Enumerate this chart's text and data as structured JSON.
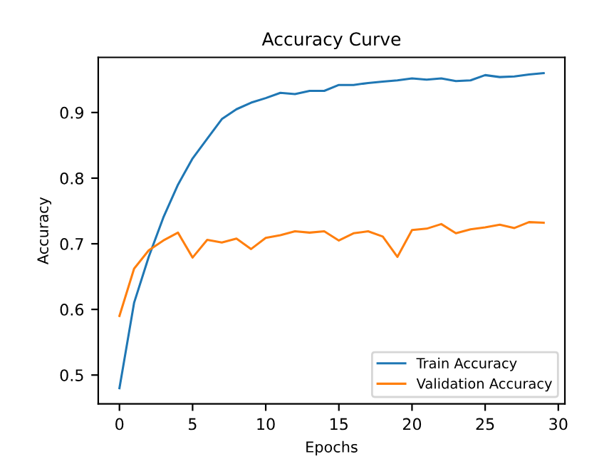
{
  "chart_data": {
    "type": "line",
    "title": "Accuracy Curve",
    "xlabel": "Epochs",
    "ylabel": "Accuracy",
    "x": [
      0,
      1,
      2,
      3,
      4,
      5,
      6,
      7,
      8,
      9,
      10,
      11,
      12,
      13,
      14,
      15,
      16,
      17,
      18,
      19,
      20,
      21,
      22,
      23,
      24,
      25,
      26,
      27,
      28,
      29
    ],
    "series": [
      {
        "name": "Train Accuracy",
        "color": "#1f77b4",
        "values": [
          0.48,
          0.61,
          0.68,
          0.74,
          0.79,
          0.83,
          0.86,
          0.89,
          0.905,
          0.915,
          0.922,
          0.93,
          0.928,
          0.933,
          0.933,
          0.942,
          0.942,
          0.945,
          0.947,
          0.949,
          0.952,
          0.95,
          0.952,
          0.948,
          0.949,
          0.957,
          0.954,
          0.955,
          0.958,
          0.96
        ]
      },
      {
        "name": "Validation Accuracy",
        "color": "#ff7f0e",
        "values": [
          0.59,
          0.662,
          0.69,
          0.705,
          0.717,
          0.679,
          0.706,
          0.702,
          0.708,
          0.692,
          0.709,
          0.713,
          0.719,
          0.717,
          0.719,
          0.705,
          0.716,
          0.719,
          0.711,
          0.68,
          0.721,
          0.723,
          0.73,
          0.716,
          0.722,
          0.725,
          0.729,
          0.724,
          0.733,
          0.732
        ]
      }
    ],
    "xlim": [
      -1.45,
      30.45
    ],
    "ylim": [
      0.456,
      0.984
    ],
    "xticks": [
      0,
      5,
      10,
      15,
      20,
      25,
      30
    ],
    "yticks": [
      0.5,
      0.6,
      0.7,
      0.8,
      0.9
    ],
    "legend": "bottom right",
    "grid": false,
    "marker": "none",
    "line_style": "solid"
  }
}
